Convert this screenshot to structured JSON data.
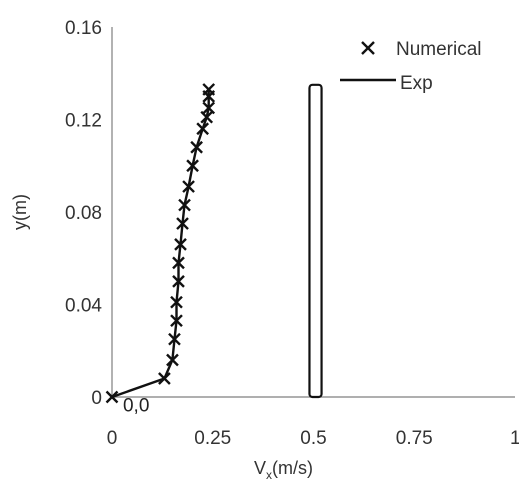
{
  "chart_data": {
    "type": "scatter",
    "title": "",
    "xlabel": "V",
    "xlabel_sub": "x",
    "xlabel_unit": "(m/s)",
    "ylabel": "y(m)",
    "xlim": [
      0,
      1
    ],
    "ylim": [
      0,
      0.16
    ],
    "x_ticks": [
      0,
      0.25,
      0.5,
      0.75,
      1
    ],
    "x_tick_labels": [
      "0",
      "0.25",
      "0.5",
      "0.75",
      "1"
    ],
    "y_ticks": [
      0,
      0.04,
      0.08,
      0.12,
      0.16
    ],
    "y_tick_labels": [
      "0",
      "0.04",
      "0.08",
      "0.12",
      "0.16"
    ],
    "grid": false,
    "legend_position": "top-right",
    "series": [
      {
        "name": "Numerical",
        "marker": "x",
        "color": "#111111",
        "x": [
          0,
          0.13,
          0.15,
          0.155,
          0.16,
          0.16,
          0.165,
          0.165,
          0.17,
          0.175,
          0.18,
          0.19,
          0.2,
          0.21,
          0.225,
          0.235,
          0.24,
          0.24,
          0.24
        ],
        "y": [
          0,
          0.008,
          0.016,
          0.025,
          0.033,
          0.041,
          0.05,
          0.058,
          0.066,
          0.075,
          0.083,
          0.091,
          0.1,
          0.108,
          0.116,
          0.121,
          0.125,
          0.13,
          0.133
        ]
      },
      {
        "name": "Exp",
        "line": "solid",
        "color": "#111111",
        "x": [
          0,
          0.13,
          0.15,
          0.155,
          0.16,
          0.16,
          0.165,
          0.165,
          0.17,
          0.175,
          0.18,
          0.19,
          0.2,
          0.21,
          0.225,
          0.235,
          0.24,
          0.24,
          0.24
        ],
        "y": [
          0,
          0.008,
          0.016,
          0.025,
          0.033,
          0.041,
          0.05,
          0.058,
          0.066,
          0.075,
          0.083,
          0.091,
          0.1,
          0.108,
          0.116,
          0.121,
          0.125,
          0.13,
          0.133
        ]
      }
    ],
    "rectangles": [
      {
        "x_min": 0.49,
        "x_max": 0.52,
        "y_min": 0,
        "y_max": 0.135
      }
    ],
    "annotations": [
      {
        "text": "0,0",
        "x": 0.06,
        "y": -0.001
      }
    ]
  }
}
